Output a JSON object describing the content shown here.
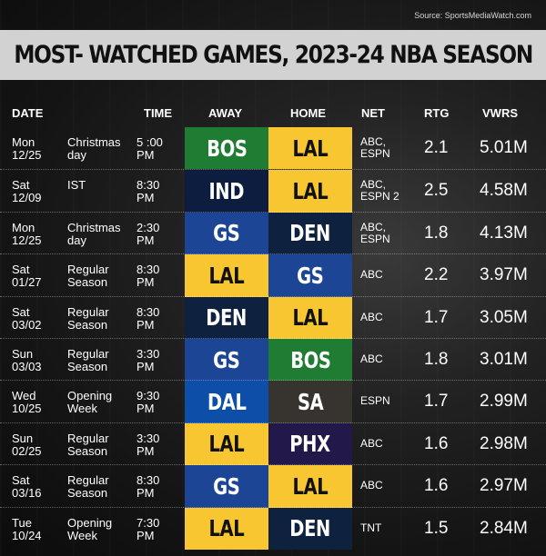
{
  "source": "Source: SportsMediaWatch.com",
  "title": "MOST- WATCHED GAMES, 2023-24 NBA SEASON",
  "colors": {
    "BOS": "#1f7d33",
    "LAL": "#f8c630",
    "IND": "#0c1d3f",
    "GS": "#1d4596",
    "DEN": "#0e2240",
    "DAL": "#0d4fa8",
    "SA": "#37342f",
    "PHX": "#22194a"
  },
  "team_text_colors": {
    "BOS": "#ffffff",
    "LAL": "#111111",
    "IND": "#ffffff",
    "GS": "#ffffff",
    "DEN": "#ffffff",
    "DAL": "#ffffff",
    "SA": "#ffffff",
    "PHX": "#ffffff"
  },
  "chart_data": {
    "type": "table",
    "title": "MOST- WATCHED GAMES, 2023-24 NBA SEASON",
    "columns": [
      "DATE",
      "",
      "TIME",
      "AWAY",
      "HOME",
      "NET",
      "RTG",
      "VWRS"
    ],
    "rows": [
      {
        "day": "Mon",
        "date": "12/25",
        "event": [
          "Christmas",
          "day"
        ],
        "time": [
          "5 :00",
          "PM"
        ],
        "away": "BOS",
        "home": "LAL",
        "net": [
          "ABC,",
          "ESPN"
        ],
        "rtg": "2.1",
        "viewers": "5.01M"
      },
      {
        "day": "Sat",
        "date": "12/09",
        "event": [
          "IST",
          ""
        ],
        "time": [
          "8:30",
          "PM"
        ],
        "away": "IND",
        "home": "LAL",
        "net": [
          "ABC,",
          "ESPN 2"
        ],
        "rtg": "2.5",
        "viewers": "4.58M"
      },
      {
        "day": "Mon",
        "date": "12/25",
        "event": [
          "Christmas",
          "day"
        ],
        "time": [
          "2:30",
          "PM"
        ],
        "away": "GS",
        "home": "DEN",
        "net": [
          "ABC,",
          "ESPN"
        ],
        "rtg": "1.8",
        "viewers": "4.13M"
      },
      {
        "day": "Sat",
        "date": "01/27",
        "event": [
          "Regular",
          "Season"
        ],
        "time": [
          "8:30",
          "PM"
        ],
        "away": "LAL",
        "home": "GS",
        "net": [
          "ABC",
          ""
        ],
        "rtg": "2.2",
        "viewers": "3.97M"
      },
      {
        "day": "Sat",
        "date": "03/02",
        "event": [
          "Regular",
          "Season"
        ],
        "time": [
          "8:30",
          "PM"
        ],
        "away": "DEN",
        "home": "LAL",
        "net": [
          "ABC",
          ""
        ],
        "rtg": "1.7",
        "viewers": "3.05M"
      },
      {
        "day": "Sun",
        "date": "03/03",
        "event": [
          "Regular",
          "Season"
        ],
        "time": [
          "3:30",
          "PM"
        ],
        "away": "GS",
        "home": "BOS",
        "net": [
          "ABC",
          ""
        ],
        "rtg": "1.8",
        "viewers": "3.01M"
      },
      {
        "day": "Wed",
        "date": "10/25",
        "event": [
          "Opening",
          "Week"
        ],
        "time": [
          "9:30",
          "PM"
        ],
        "away": "DAL",
        "home": "SA",
        "net": [
          "ESPN",
          ""
        ],
        "rtg": "1.7",
        "viewers": "2.99M"
      },
      {
        "day": "Sun",
        "date": "02/25",
        "event": [
          "Regular",
          "Season"
        ],
        "time": [
          "3:30",
          "PM"
        ],
        "away": "LAL",
        "home": "PHX",
        "net": [
          "ABC",
          ""
        ],
        "rtg": "1.6",
        "viewers": "2.98M"
      },
      {
        "day": "Sat",
        "date": "03/16",
        "event": [
          "Regular",
          "Season"
        ],
        "time": [
          "8:30",
          "PM"
        ],
        "away": "GS",
        "home": "LAL",
        "net": [
          "ABC",
          ""
        ],
        "rtg": "1.6",
        "viewers": "2.97M"
      },
      {
        "day": "Tue",
        "date": "10/24",
        "event": [
          "Opening",
          "Week"
        ],
        "time": [
          "7:30",
          "PM"
        ],
        "away": "LAL",
        "home": "DEN",
        "net": [
          "TNT",
          ""
        ],
        "rtg": "1.5",
        "viewers": "2.84M"
      }
    ]
  }
}
